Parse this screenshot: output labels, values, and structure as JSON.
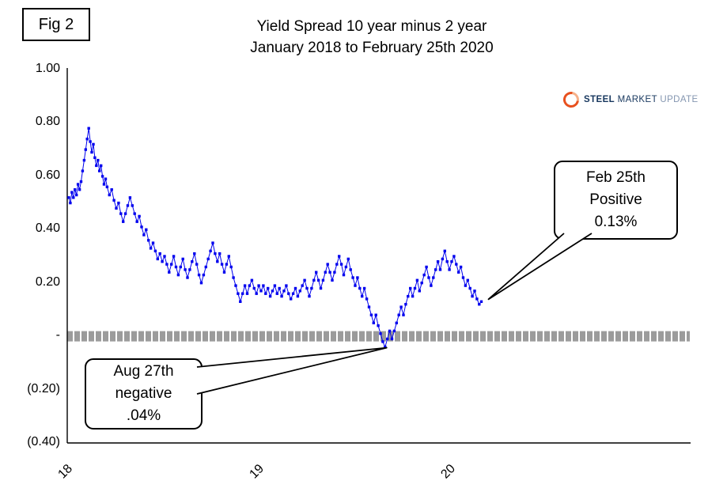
{
  "figure_label": "Fig 2",
  "logo": {
    "steel": "STEEL",
    "market": "MARKET",
    "update": "UPDATE"
  },
  "chart_data": {
    "type": "scatter-line",
    "title": "Yield Spread 10 year minus 2 year",
    "subtitle": "January 2018 to February 25th 2020",
    "xlabel": "",
    "ylabel": "",
    "xlim": [
      2018.0,
      2021.25
    ],
    "ylim": [
      -0.4,
      1.0
    ],
    "x_tick_values": [
      2018,
      2019,
      2020
    ],
    "x_ticks": [
      "18",
      "19",
      "20"
    ],
    "y_tick_values": [
      1.0,
      0.8,
      0.6,
      0.4,
      0.2,
      0.0,
      -0.2,
      -0.4
    ],
    "y_ticks": [
      "1.00",
      "0.80",
      "0.60",
      "0.40",
      "0.20",
      "-",
      "(0.20)",
      "(0.40)"
    ],
    "zero_band_value": 0.0,
    "grid": false,
    "legend": false,
    "colors": {
      "series": "#0000ee",
      "zero_band": "#9b9b9b",
      "axis": "#000000",
      "callout_border": "#000000"
    },
    "annotations": [
      {
        "id": "feb25",
        "x": 2020.155,
        "y": 0.13,
        "text_lines": [
          "Feb 25th",
          "Positive",
          "0.13%"
        ]
      },
      {
        "id": "aug27",
        "x": 2019.652,
        "y": -0.04,
        "text_lines": [
          "Aug 27th",
          "negative",
          ".04%"
        ]
      }
    ],
    "series": [
      {
        "name": "10yr minus 2yr Treasury yield spread (%)",
        "points": [
          [
            2018.0,
            0.52
          ],
          [
            2018.008,
            0.5
          ],
          [
            2018.016,
            0.54
          ],
          [
            2018.024,
            0.52
          ],
          [
            2018.032,
            0.55
          ],
          [
            2018.04,
            0.53
          ],
          [
            2018.048,
            0.57
          ],
          [
            2018.056,
            0.55
          ],
          [
            2018.064,
            0.58
          ],
          [
            2018.072,
            0.62
          ],
          [
            2018.08,
            0.66
          ],
          [
            2018.088,
            0.7
          ],
          [
            2018.096,
            0.74
          ],
          [
            2018.104,
            0.78
          ],
          [
            2018.112,
            0.73
          ],
          [
            2018.12,
            0.69
          ],
          [
            2018.128,
            0.72
          ],
          [
            2018.136,
            0.67
          ],
          [
            2018.144,
            0.64
          ],
          [
            2018.152,
            0.66
          ],
          [
            2018.16,
            0.62
          ],
          [
            2018.168,
            0.64
          ],
          [
            2018.176,
            0.6
          ],
          [
            2018.184,
            0.57
          ],
          [
            2018.192,
            0.59
          ],
          [
            2018.2,
            0.56
          ],
          [
            2018.212,
            0.53
          ],
          [
            2018.224,
            0.55
          ],
          [
            2018.236,
            0.51
          ],
          [
            2018.248,
            0.48
          ],
          [
            2018.26,
            0.5
          ],
          [
            2018.272,
            0.46
          ],
          [
            2018.284,
            0.43
          ],
          [
            2018.296,
            0.46
          ],
          [
            2018.308,
            0.49
          ],
          [
            2018.32,
            0.52
          ],
          [
            2018.332,
            0.49
          ],
          [
            2018.344,
            0.46
          ],
          [
            2018.356,
            0.43
          ],
          [
            2018.368,
            0.45
          ],
          [
            2018.38,
            0.41
          ],
          [
            2018.392,
            0.38
          ],
          [
            2018.404,
            0.4
          ],
          [
            2018.416,
            0.36
          ],
          [
            2018.428,
            0.33
          ],
          [
            2018.44,
            0.35
          ],
          [
            2018.452,
            0.32
          ],
          [
            2018.464,
            0.29
          ],
          [
            2018.476,
            0.31
          ],
          [
            2018.488,
            0.28
          ],
          [
            2018.5,
            0.3
          ],
          [
            2018.512,
            0.27
          ],
          [
            2018.524,
            0.24
          ],
          [
            2018.536,
            0.27
          ],
          [
            2018.548,
            0.3
          ],
          [
            2018.56,
            0.26
          ],
          [
            2018.572,
            0.23
          ],
          [
            2018.584,
            0.26
          ],
          [
            2018.596,
            0.29
          ],
          [
            2018.608,
            0.25
          ],
          [
            2018.62,
            0.22
          ],
          [
            2018.632,
            0.25
          ],
          [
            2018.644,
            0.28
          ],
          [
            2018.656,
            0.31
          ],
          [
            2018.668,
            0.27
          ],
          [
            2018.68,
            0.23
          ],
          [
            2018.692,
            0.2
          ],
          [
            2018.704,
            0.23
          ],
          [
            2018.716,
            0.26
          ],
          [
            2018.728,
            0.29
          ],
          [
            2018.74,
            0.32
          ],
          [
            2018.752,
            0.35
          ],
          [
            2018.764,
            0.31
          ],
          [
            2018.776,
            0.28
          ],
          [
            2018.788,
            0.31
          ],
          [
            2018.8,
            0.27
          ],
          [
            2018.812,
            0.24
          ],
          [
            2018.824,
            0.27
          ],
          [
            2018.836,
            0.3
          ],
          [
            2018.848,
            0.26
          ],
          [
            2018.86,
            0.22
          ],
          [
            2018.872,
            0.19
          ],
          [
            2018.884,
            0.16
          ],
          [
            2018.896,
            0.13
          ],
          [
            2018.908,
            0.16
          ],
          [
            2018.92,
            0.19
          ],
          [
            2018.932,
            0.16
          ],
          [
            2018.944,
            0.19
          ],
          [
            2018.956,
            0.21
          ],
          [
            2018.968,
            0.18
          ],
          [
            2018.98,
            0.16
          ],
          [
            2018.992,
            0.19
          ],
          [
            2019.004,
            0.17
          ],
          [
            2019.016,
            0.19
          ],
          [
            2019.028,
            0.16
          ],
          [
            2019.04,
            0.18
          ],
          [
            2019.052,
            0.15
          ],
          [
            2019.064,
            0.17
          ],
          [
            2019.076,
            0.19
          ],
          [
            2019.088,
            0.16
          ],
          [
            2019.1,
            0.18
          ],
          [
            2019.112,
            0.15
          ],
          [
            2019.124,
            0.17
          ],
          [
            2019.136,
            0.19
          ],
          [
            2019.148,
            0.16
          ],
          [
            2019.16,
            0.14
          ],
          [
            2019.172,
            0.16
          ],
          [
            2019.184,
            0.18
          ],
          [
            2019.196,
            0.15
          ],
          [
            2019.208,
            0.17
          ],
          [
            2019.22,
            0.19
          ],
          [
            2019.232,
            0.21
          ],
          [
            2019.244,
            0.18
          ],
          [
            2019.256,
            0.15
          ],
          [
            2019.268,
            0.18
          ],
          [
            2019.28,
            0.21
          ],
          [
            2019.292,
            0.24
          ],
          [
            2019.304,
            0.21
          ],
          [
            2019.316,
            0.18
          ],
          [
            2019.328,
            0.21
          ],
          [
            2019.34,
            0.24
          ],
          [
            2019.352,
            0.27
          ],
          [
            2019.364,
            0.24
          ],
          [
            2019.376,
            0.21
          ],
          [
            2019.388,
            0.24
          ],
          [
            2019.4,
            0.27
          ],
          [
            2019.412,
            0.3
          ],
          [
            2019.424,
            0.27
          ],
          [
            2019.436,
            0.23
          ],
          [
            2019.448,
            0.26
          ],
          [
            2019.46,
            0.29
          ],
          [
            2019.472,
            0.25
          ],
          [
            2019.484,
            0.22
          ],
          [
            2019.496,
            0.19
          ],
          [
            2019.508,
            0.22
          ],
          [
            2019.52,
            0.18
          ],
          [
            2019.532,
            0.15
          ],
          [
            2019.544,
            0.18
          ],
          [
            2019.556,
            0.14
          ],
          [
            2019.568,
            0.11
          ],
          [
            2019.58,
            0.08
          ],
          [
            2019.592,
            0.05
          ],
          [
            2019.604,
            0.08
          ],
          [
            2019.616,
            0.04
          ],
          [
            2019.628,
            0.01
          ],
          [
            2019.64,
            -0.02
          ],
          [
            2019.652,
            -0.04
          ],
          [
            2019.664,
            -0.01
          ],
          [
            2019.676,
            0.02
          ],
          [
            2019.688,
            -0.01
          ],
          [
            2019.7,
            0.02
          ],
          [
            2019.712,
            0.05
          ],
          [
            2019.724,
            0.08
          ],
          [
            2019.736,
            0.11
          ],
          [
            2019.748,
            0.08
          ],
          [
            2019.76,
            0.12
          ],
          [
            2019.772,
            0.15
          ],
          [
            2019.784,
            0.18
          ],
          [
            2019.796,
            0.15
          ],
          [
            2019.808,
            0.18
          ],
          [
            2019.82,
            0.21
          ],
          [
            2019.832,
            0.17
          ],
          [
            2019.844,
            0.2
          ],
          [
            2019.856,
            0.23
          ],
          [
            2019.868,
            0.26
          ],
          [
            2019.88,
            0.22
          ],
          [
            2019.892,
            0.19
          ],
          [
            2019.904,
            0.22
          ],
          [
            2019.916,
            0.25
          ],
          [
            2019.928,
            0.28
          ],
          [
            2019.94,
            0.25
          ],
          [
            2019.952,
            0.29
          ],
          [
            2019.964,
            0.32
          ],
          [
            2019.976,
            0.28
          ],
          [
            2019.988,
            0.25
          ],
          [
            2020.0,
            0.28
          ],
          [
            2020.012,
            0.3
          ],
          [
            2020.024,
            0.27
          ],
          [
            2020.036,
            0.24
          ],
          [
            2020.048,
            0.26
          ],
          [
            2020.06,
            0.22
          ],
          [
            2020.072,
            0.19
          ],
          [
            2020.084,
            0.21
          ],
          [
            2020.096,
            0.18
          ],
          [
            2020.108,
            0.15
          ],
          [
            2020.12,
            0.17
          ],
          [
            2020.132,
            0.14
          ],
          [
            2020.144,
            0.12
          ],
          [
            2020.155,
            0.13
          ]
        ]
      }
    ]
  }
}
